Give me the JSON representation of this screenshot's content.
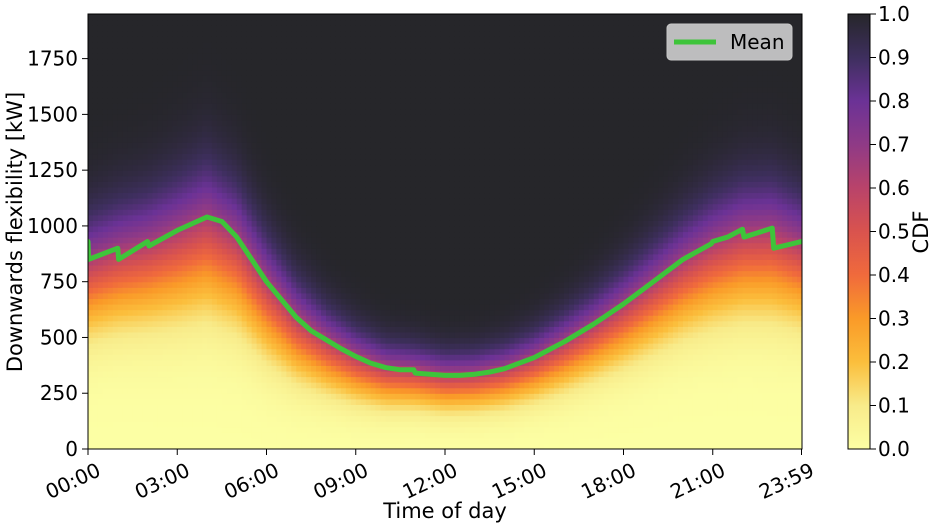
{
  "chart_data": {
    "type": "heatmap",
    "xlabel": "Time of day",
    "ylabel": "Downwards flexibility [kW]",
    "colorbar_label": "CDF",
    "xlim_hours": [
      0,
      24
    ],
    "ylim": [
      0,
      1950
    ],
    "x_ticks": [
      {
        "hour": 0,
        "label": "00:00"
      },
      {
        "hour": 3,
        "label": "03:00"
      },
      {
        "hour": 6,
        "label": "06:00"
      },
      {
        "hour": 9,
        "label": "09:00"
      },
      {
        "hour": 12,
        "label": "12:00"
      },
      {
        "hour": 15,
        "label": "15:00"
      },
      {
        "hour": 18,
        "label": "18:00"
      },
      {
        "hour": 21,
        "label": "21:00"
      },
      {
        "hour": 23.983,
        "label": "23:59"
      }
    ],
    "y_ticks": [
      {
        "value": 0,
        "label": "0"
      },
      {
        "value": 250,
        "label": "250"
      },
      {
        "value": 500,
        "label": "500"
      },
      {
        "value": 750,
        "label": "750"
      },
      {
        "value": 1000,
        "label": "1000"
      },
      {
        "value": 1250,
        "label": "1250"
      },
      {
        "value": 1500,
        "label": "1500"
      },
      {
        "value": 1750,
        "label": "1750"
      }
    ],
    "colorbar_ticks": [
      {
        "value": 0.0,
        "label": "0.0"
      },
      {
        "value": 0.1,
        "label": "0.1"
      },
      {
        "value": 0.2,
        "label": "0.2"
      },
      {
        "value": 0.3,
        "label": "0.3"
      },
      {
        "value": 0.4,
        "label": "0.4"
      },
      {
        "value": 0.5,
        "label": "0.5"
      },
      {
        "value": 0.6,
        "label": "0.6"
      },
      {
        "value": 0.7,
        "label": "0.7"
      },
      {
        "value": 0.8,
        "label": "0.8"
      },
      {
        "value": 0.9,
        "label": "0.9"
      },
      {
        "value": 1.0,
        "label": "1.0"
      }
    ],
    "colormap": [
      {
        "stop": 0.0,
        "color": "#fcffa4"
      },
      {
        "stop": 0.1,
        "color": "#f8eb8a"
      },
      {
        "stop": 0.2,
        "color": "#fbbe3c"
      },
      {
        "stop": 0.3,
        "color": "#fa9a28"
      },
      {
        "stop": 0.4,
        "color": "#f06a3c"
      },
      {
        "stop": 0.5,
        "color": "#d9534e"
      },
      {
        "stop": 0.6,
        "color": "#b9436a"
      },
      {
        "stop": 0.7,
        "color": "#8f3a86"
      },
      {
        "stop": 0.8,
        "color": "#6b3296"
      },
      {
        "stop": 0.9,
        "color": "#3e2f5e"
      },
      {
        "stop": 1.0,
        "color": "#26262a"
      }
    ],
    "legend": {
      "label": "Mean",
      "placement": "top-right",
      "color": "#3ec43a"
    },
    "series": [
      {
        "name": "Mean",
        "color": "#3ec43a",
        "x_hours": [
          0,
          0.02,
          1.0,
          1.03,
          2.0,
          2.05,
          3.0,
          4.0,
          4.5,
          5.0,
          5.5,
          6.0,
          6.5,
          7.0,
          7.5,
          8.0,
          8.5,
          9.0,
          9.5,
          10.0,
          10.5,
          10.95,
          11.0,
          11.5,
          12.0,
          12.5,
          13.0,
          13.5,
          14.0,
          15.0,
          16.0,
          17.0,
          18.0,
          19.0,
          20.0,
          20.95,
          21.0,
          21.5,
          22.0,
          22.05,
          23.0,
          23.05,
          23.983
        ],
        "values": [
          930,
          850,
          900,
          850,
          930,
          910,
          980,
          1040,
          1020,
          950,
          850,
          750,
          670,
          590,
          530,
          490,
          450,
          415,
          385,
          365,
          355,
          355,
          340,
          335,
          330,
          330,
          335,
          345,
          360,
          410,
          480,
          560,
          650,
          750,
          850,
          920,
          930,
          950,
          985,
          950,
          990,
          900,
          930
        ]
      }
    ],
    "distribution": {
      "description_hours": [
        0,
        1,
        2,
        3,
        4,
        5,
        6,
        7,
        8,
        9,
        10,
        11,
        12,
        13,
        14,
        15,
        16,
        17,
        18,
        19,
        20,
        21,
        22,
        23,
        24
      ],
      "mean_kw": [
        850,
        900,
        930,
        980,
        1040,
        950,
        750,
        590,
        490,
        415,
        365,
        355,
        330,
        335,
        360,
        410,
        480,
        560,
        650,
        750,
        850,
        930,
        985,
        990,
        930
      ],
      "spread_kw": [
        230,
        240,
        250,
        270,
        290,
        270,
        230,
        190,
        160,
        140,
        125,
        120,
        115,
        115,
        120,
        130,
        145,
        160,
        180,
        200,
        220,
        240,
        255,
        260,
        245
      ]
    }
  }
}
